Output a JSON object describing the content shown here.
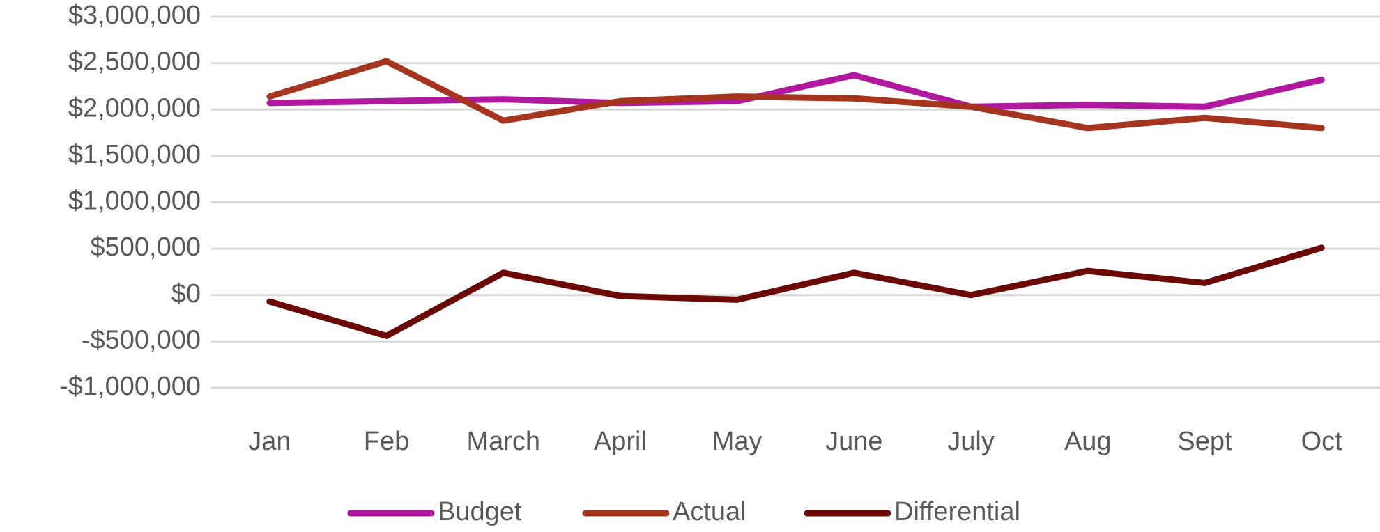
{
  "chart_data": {
    "type": "line",
    "categories": [
      "Jan",
      "Feb",
      "March",
      "April",
      "May",
      "June",
      "July",
      "Aug",
      "Sept",
      "Oct"
    ],
    "series": [
      {
        "name": "Budget",
        "color": "#b0189e",
        "values": [
          2070000,
          2090000,
          2110000,
          2070000,
          2090000,
          2370000,
          2030000,
          2050000,
          2030000,
          2320000
        ]
      },
      {
        "name": "Actual",
        "color": "#a5351f",
        "values": [
          2140000,
          2520000,
          1880000,
          2090000,
          2140000,
          2120000,
          2030000,
          1800000,
          1910000,
          1800000
        ]
      },
      {
        "name": "Differential",
        "color": "#6b0a05",
        "values": [
          -70000,
          -440000,
          240000,
          -10000,
          -50000,
          240000,
          0,
          260000,
          130000,
          510000
        ]
      }
    ],
    "ylim": [
      -1000000,
      3000000
    ],
    "yticks": [
      {
        "value": -1000000,
        "label": "-$1,000,000"
      },
      {
        "value": -500000,
        "label": "-$500,000"
      },
      {
        "value": 0,
        "label": "$0"
      },
      {
        "value": 500000,
        "label": "$500,000"
      },
      {
        "value": 1000000,
        "label": "$1,000,000"
      },
      {
        "value": 1500000,
        "label": "$1,500,000"
      },
      {
        "value": 2000000,
        "label": "$2,000,000"
      },
      {
        "value": 2500000,
        "label": "$2,500,000"
      },
      {
        "value": 3000000,
        "label": "$3,000,000"
      }
    ],
    "grid": true,
    "legend": "bottom"
  }
}
